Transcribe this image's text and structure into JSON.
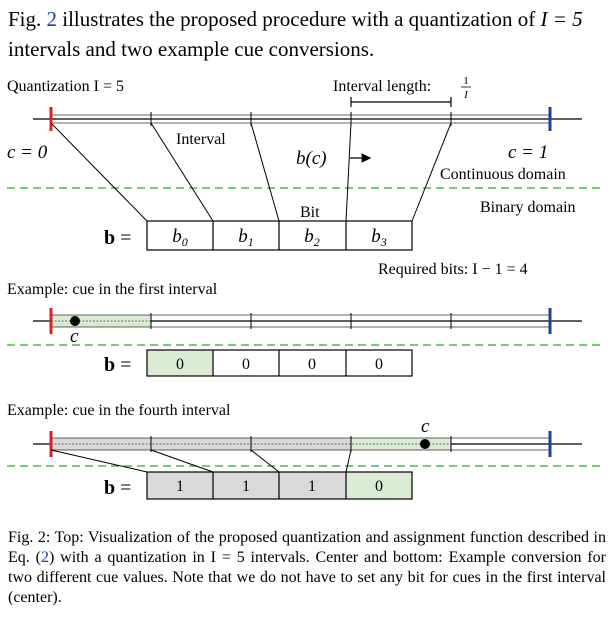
{
  "intro": {
    "part1": "Fig. ",
    "fig_ref": "2",
    "part2": " illustrates the proposed procedure with a quantization of ",
    "math": "I = 5",
    "part3": " intervals and two example cue conversions."
  },
  "figure": {
    "quantization_label": "Quantization I = 5",
    "interval_length_label": "Interval length:",
    "interval_length_frac_num": "1",
    "interval_length_frac_den": "I",
    "interval_label": "Interval",
    "c0_label": "c = 0",
    "c1_label": "c = 1",
    "mapping_label": "b(c)",
    "continuous_domain": "Continuous domain",
    "binary_domain": "Binary domain",
    "bit_label": "Bit",
    "vector_label": "b =",
    "bits": [
      "b0",
      "b1",
      "b2",
      "b3"
    ],
    "required_bits": "Required bits: I − 1 = 4",
    "example1_title": "Example: cue in the first interval",
    "example1_cue": "c",
    "example1_bits": [
      "0",
      "0",
      "0",
      "0"
    ],
    "example2_title": "Example: cue in the fourth interval",
    "example2_cue": "c",
    "example2_bits": [
      "1",
      "1",
      "1",
      "0"
    ],
    "colors": {
      "left_marker": "#e02020",
      "right_marker": "#1f3f9a",
      "green_dash": "#2aa82a",
      "green_fill": "#d9ecd3",
      "gray_fill": "#d9d9d9"
    }
  },
  "caption": {
    "part1": "Fig. 2: Top: Visualization of the proposed quantization and assignment function described in Eq. (",
    "eq_ref": "2",
    "part2": ") with a quantization in I = 5 intervals. Center and bottom: Example conversion for two different cue values. Note that we do not have to set any bit for cues in the first interval (center)."
  }
}
